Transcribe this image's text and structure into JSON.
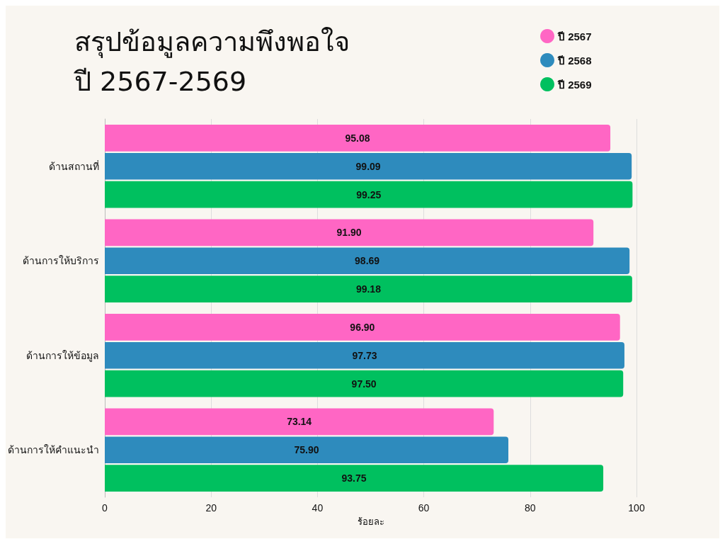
{
  "chart_data": {
    "type": "bar",
    "orientation": "horizontal",
    "title": "สรุปข้อมูลความพึงพอใจ\nปี 2567-2569",
    "xlabel": "ร้อยละ",
    "categories": [
      "ด้านสถานที่",
      "ด้านการให้บริการ",
      "ด้านการให้ข้อมูล",
      "ด้านการให้คำแนะนำ"
    ],
    "series": [
      {
        "name": "ปี 2567",
        "color": "#ff66c4",
        "values": [
          95.08,
          91.9,
          96.9,
          73.14
        ],
        "value_labels": [
          "95.08",
          "91.90",
          "96.90",
          "73.14"
        ]
      },
      {
        "name": "ปี 2568",
        "color": "#2e8bbd",
        "values": [
          99.09,
          98.69,
          97.73,
          75.9
        ],
        "value_labels": [
          "99.09",
          "98.69",
          "97.73",
          "75.90"
        ]
      },
      {
        "name": "ปี 2569",
        "color": "#00c05f",
        "values": [
          99.25,
          99.18,
          97.5,
          93.75
        ],
        "value_labels": [
          "99.25",
          "99.18",
          "97.50",
          "93.75"
        ]
      }
    ],
    "xlim": [
      0,
      100
    ],
    "xticks": [
      0,
      20,
      40,
      60,
      80,
      100
    ],
    "grid": "x",
    "legend": "top right"
  }
}
